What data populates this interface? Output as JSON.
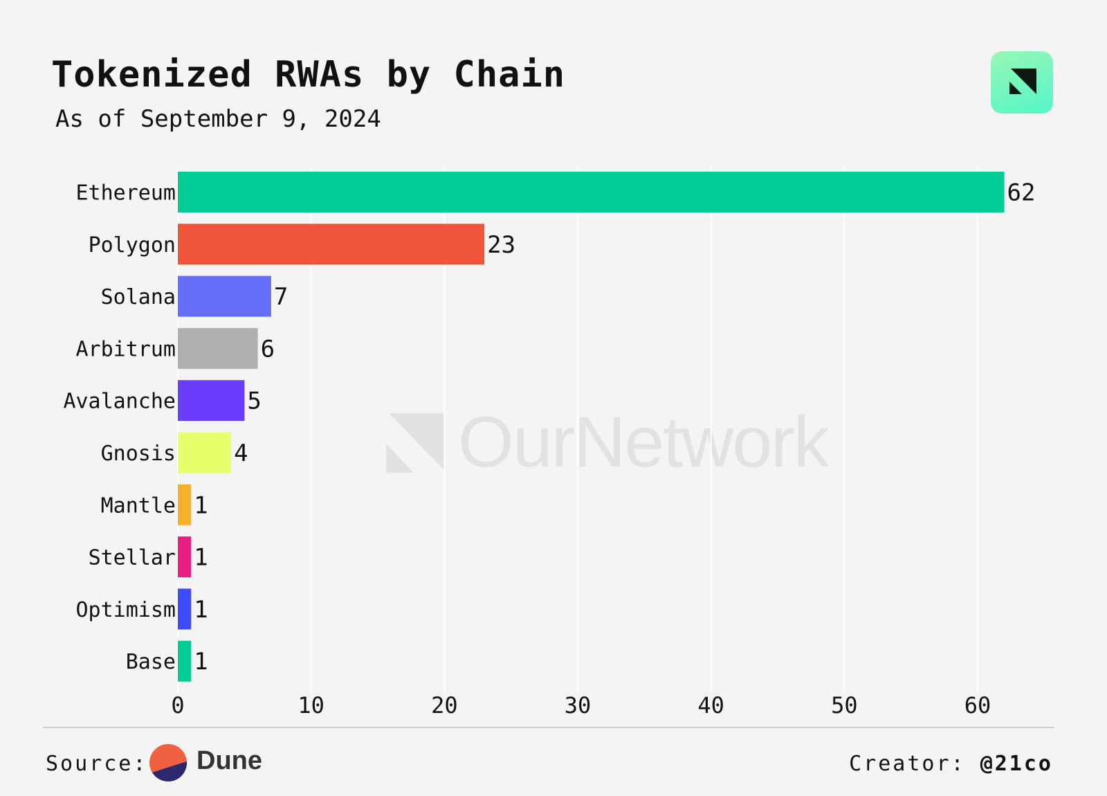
{
  "chart_data": {
    "type": "bar",
    "orientation": "horizontal",
    "title": "Tokenized RWAs by Chain",
    "subtitle": "As of September 9, 2024",
    "categories": [
      "Ethereum",
      "Polygon",
      "Solana",
      "Arbitrum",
      "Avalanche",
      "Gnosis",
      "Mantle",
      "Stellar",
      "Optimism",
      "Base"
    ],
    "values": [
      62,
      23,
      7,
      6,
      5,
      4,
      1,
      1,
      1,
      1
    ],
    "colors": [
      "#00cc96",
      "#ef553b",
      "#636efa",
      "#b0b0b0",
      "#6a3dfd",
      "#e6ff6a",
      "#f7b02a",
      "#e91e82",
      "#3d4cff",
      "#00cc96"
    ],
    "xlim": [
      0,
      65
    ],
    "xticks": [
      0,
      10,
      20,
      30,
      40,
      50,
      60
    ],
    "grid": true,
    "legend": "none",
    "data_labels": true
  },
  "watermark": "OurNetwork",
  "footer": {
    "source_label": "Source:",
    "source_name": "Dune",
    "creator_label": "Creator:",
    "creator_handle": "@21co"
  },
  "colors": {
    "background": "#f4f4f4",
    "logo_gradient": [
      "#98f7b5",
      "#55f5c8"
    ],
    "dune_orange": "#f06142",
    "dune_navy": "#2b286e"
  }
}
